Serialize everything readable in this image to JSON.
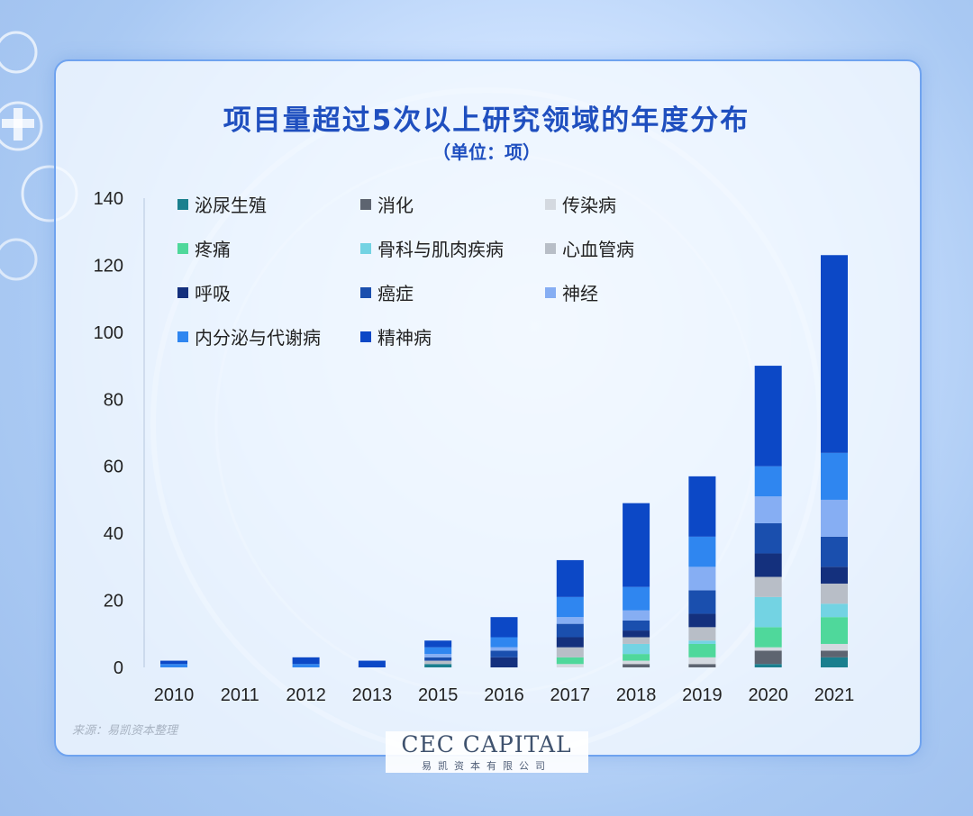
{
  "title": "项目量超过5次以上研究领域的年度分布",
  "subtitle": "（单位：项）",
  "source": "来源：易凯资本整理",
  "logo": {
    "main": "CEC CAPITAL",
    "sub": "易凯资本有限公司"
  },
  "colors": {
    "泌尿生殖": "#1a7f8e",
    "消化": "#5d6470",
    "传染病": "#d4d9e0",
    "疼痛": "#4fd89b",
    "骨科与肌肉疾病": "#73d3e3",
    "心血管病": "#b8bec7",
    "呼吸": "#14307d",
    "癌症": "#1a4fae",
    "神经": "#86aef3",
    "内分泌与代谢病": "#2f86f0",
    "精神病": "#0c48c6"
  },
  "chart_data": {
    "type": "bar",
    "stacked": true,
    "categories": [
      "2010",
      "2011",
      "2012",
      "2013",
      "2015",
      "2016",
      "2017",
      "2018",
      "2019",
      "2020",
      "2021"
    ],
    "ylim": [
      0,
      140
    ],
    "yticks": [
      0,
      20,
      40,
      60,
      80,
      100,
      120,
      140
    ],
    "legend_position": "top-left",
    "series": [
      {
        "name": "泌尿生殖",
        "values": [
          0,
          0,
          0,
          0,
          1,
          0,
          0,
          0,
          0,
          1,
          3
        ]
      },
      {
        "name": "消化",
        "values": [
          0,
          0,
          0,
          0,
          0,
          0,
          0,
          1,
          1,
          4,
          2
        ]
      },
      {
        "name": "传染病",
        "values": [
          0,
          0,
          0,
          0,
          0,
          0,
          1,
          1,
          2,
          1,
          2
        ]
      },
      {
        "name": "疼痛",
        "values": [
          0,
          0,
          0,
          0,
          0,
          0,
          2,
          2,
          4,
          6,
          8
        ]
      },
      {
        "name": "骨科与肌肉疾病",
        "values": [
          0,
          0,
          0,
          0,
          0,
          0,
          0,
          3,
          1,
          9,
          4
        ]
      },
      {
        "name": "心血管病",
        "values": [
          0,
          0,
          0,
          0,
          1,
          0,
          3,
          2,
          4,
          6,
          6
        ]
      },
      {
        "name": "呼吸",
        "values": [
          0,
          0,
          0,
          0,
          0,
          3,
          3,
          2,
          4,
          7,
          5
        ]
      },
      {
        "name": "癌症",
        "values": [
          0,
          0,
          0,
          0,
          1,
          2,
          4,
          3,
          7,
          9,
          9
        ]
      },
      {
        "name": "神经",
        "values": [
          0,
          0,
          0,
          0,
          1,
          1,
          2,
          3,
          7,
          8,
          11
        ]
      },
      {
        "name": "内分泌与代谢病",
        "values": [
          1,
          0,
          1,
          0,
          2,
          3,
          6,
          7,
          9,
          9,
          14
        ]
      },
      {
        "name": "精神病",
        "values": [
          1,
          0,
          2,
          2,
          2,
          6,
          11,
          25,
          18,
          30,
          59
        ]
      }
    ]
  }
}
